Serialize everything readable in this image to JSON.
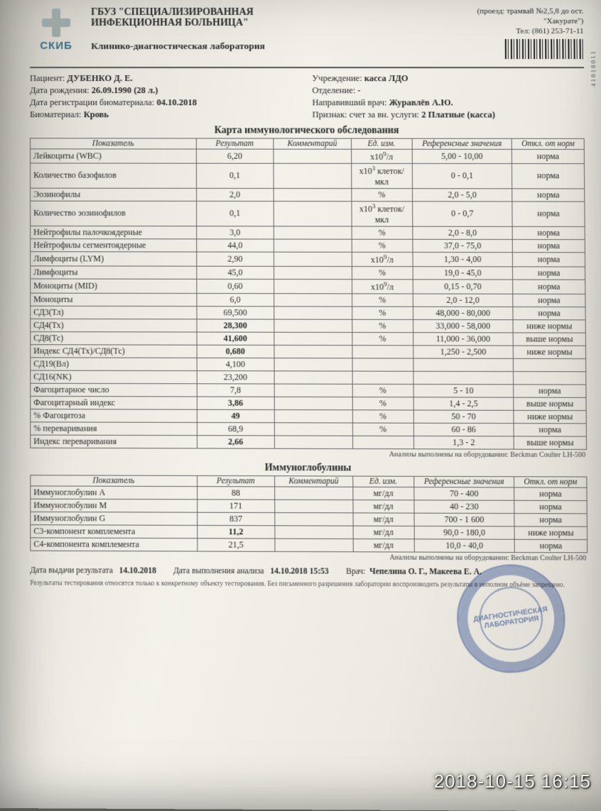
{
  "org": {
    "line1": "ГБУЗ \"СПЕЦИАЛИЗИРОВАННАЯ",
    "line2": "ИНФЕКЦИОННАЯ БОЛЬНИЦА\"",
    "lab": "Клинико-диагностическая лаборатория",
    "logo_label": "СКИБ"
  },
  "top_right": {
    "line1": "(проезд: трамвай №2,5,8 до ост.",
    "line2": "\"Хакурате\")",
    "phone": "Тел: (861) 253-71-11",
    "barcode_num": "41018011"
  },
  "patient": {
    "label": "Пациент:",
    "name": "ДУБЕНКО Д. Е.",
    "dob_label": "Дата рождения:",
    "dob": "26.09.1990 (28 л.)",
    "reg_label": "Дата регистрации биоматериала:",
    "reg_date": "04.10.2018",
    "bio_label": "Биоматериал:",
    "bio": "Кровь"
  },
  "institution": {
    "org_label": "Учреждение:",
    "org": "касса ЛДО",
    "dept_label": "Отделение:",
    "dept": "-",
    "ref_label": "Направивший врач:",
    "ref": "Журавлёв А.Ю.",
    "sign_label": "Признак:",
    "sign": "счет за вн. услуги:",
    "sign2": "2 Платные (касса)"
  },
  "columns": {
    "name": "Показатель",
    "result": "Результат",
    "comment": "Комментарий",
    "unit": "Ед. изм.",
    "ref": "Референсные значения",
    "dev": "Откл. от норм"
  },
  "section1": {
    "title": "Карта иммунологического обследования",
    "rows": [
      {
        "name": "Лейкоциты (WBC)",
        "res": "6,20",
        "unit": "x10⁹/л",
        "ref": "5,00 - 10,00",
        "dev": "норма",
        "bold": false
      },
      {
        "name": "Количество базофилов",
        "res": "0,1",
        "unit": "x10³ клеток/мкл",
        "ref": "0 - 0,1",
        "dev": "норма",
        "bold": false
      },
      {
        "name": "Эозинофилы",
        "res": "2,0",
        "unit": "%",
        "ref": "2,0 - 5,0",
        "dev": "норма",
        "bold": false
      },
      {
        "name": "Количество эозинофилов",
        "res": "0,1",
        "unit": "x10³ клеток/мкл",
        "ref": "0 - 0,7",
        "dev": "норма",
        "bold": false
      },
      {
        "name": "Нейтрофилы палочкоядерные",
        "res": "3,0",
        "unit": "%",
        "ref": "2,0 - 8,0",
        "dev": "норма",
        "bold": false
      },
      {
        "name": "Нейтрофилы сегментоядерные",
        "res": "44,0",
        "unit": "%",
        "ref": "37,0 - 75,0",
        "dev": "норма",
        "bold": false
      },
      {
        "name": "Лимфоциты (LYM)",
        "res": "2,90",
        "unit": "x10⁹/л",
        "ref": "1,30 - 4,00",
        "dev": "норма",
        "bold": false
      },
      {
        "name": "Лимфоциты",
        "res": "45,0",
        "unit": "%",
        "ref": "19,0 - 45,0",
        "dev": "норма",
        "bold": false
      },
      {
        "name": "Моноциты (MID)",
        "res": "0,60",
        "unit": "x10⁹/л",
        "ref": "0,15 - 0,70",
        "dev": "норма",
        "bold": false
      },
      {
        "name": "Моноциты",
        "res": "6,0",
        "unit": "%",
        "ref": "2,0 - 12,0",
        "dev": "норма",
        "bold": false
      },
      {
        "name": "СД3(Тл)",
        "res": "69,500",
        "unit": "%",
        "ref": "48,000 - 80,000",
        "dev": "норма",
        "bold": false
      },
      {
        "name": "СД4(Тх)",
        "res": "28,300",
        "unit": "%",
        "ref": "33,000 - 58,000",
        "dev": "ниже нормы",
        "bold": true
      },
      {
        "name": "СД8(Тс)",
        "res": "41,600",
        "unit": "%",
        "ref": "11,000 - 36,000",
        "dev": "выше нормы",
        "bold": true
      },
      {
        "name": "Индекс СД4(Тх)/СД8(Тс)",
        "res": "0,680",
        "unit": "",
        "ref": "1,250 - 2,500",
        "dev": "ниже нормы",
        "bold": true
      },
      {
        "name": "СД19(Вл)",
        "res": "4,100",
        "unit": "",
        "ref": "",
        "dev": "",
        "bold": false
      },
      {
        "name": "СД16(NK)",
        "res": "23,200",
        "unit": "",
        "ref": "",
        "dev": "",
        "bold": false
      },
      {
        "name": "Фагоцитарное число",
        "res": "7,8",
        "unit": "%",
        "ref": "5 - 10",
        "dev": "норма",
        "bold": false
      },
      {
        "name": "Фагоцитарный индекс",
        "res": "3,86",
        "unit": "%",
        "ref": "1,4 - 2,5",
        "dev": "выше нормы",
        "bold": true
      },
      {
        "name": "% Фагоцитоза",
        "res": "49",
        "unit": "%",
        "ref": "50 - 70",
        "dev": "ниже нормы",
        "bold": true
      },
      {
        "name": "% переваривания",
        "res": "68,9",
        "unit": "%",
        "ref": "60 - 86",
        "dev": "норма",
        "bold": false
      },
      {
        "name": "Индекс переваривания",
        "res": "2,66",
        "unit": "",
        "ref": "1,3 - 2",
        "dev": "выше нормы",
        "bold": true
      }
    ],
    "equip": "Анализы выполнены на оборудовании: Beckman Coulter LH-500"
  },
  "section2": {
    "title": "Иммуноглобулины",
    "rows": [
      {
        "name": "Иммуноглобулин А",
        "res": "88",
        "unit": "мг/дл",
        "ref": "70 - 400",
        "dev": "норма",
        "bold": false
      },
      {
        "name": "Иммуноглобулин М",
        "res": "171",
        "unit": "мг/дл",
        "ref": "40 - 230",
        "dev": "норма",
        "bold": false
      },
      {
        "name": "Иммуноглобулин G",
        "res": "837",
        "unit": "мг/дл",
        "ref": "700 - 1 600",
        "dev": "норма",
        "bold": false
      },
      {
        "name": "С3-компонент комплемента",
        "res": "11,2",
        "unit": "мг/дл",
        "ref": "90,0 - 180,0",
        "dev": "ниже нормы",
        "bold": true
      },
      {
        "name": "С4-компонента комплемента",
        "res": "21,5",
        "unit": "мг/дл",
        "ref": "10,0 - 40,0",
        "dev": "норма",
        "bold": false
      }
    ],
    "equip": "Анализы выполнены на оборудовании: Beckman Coulter LH-500"
  },
  "footer": {
    "issue_label": "Дата выдачи результата",
    "issue_date": "14.10.2018",
    "done_label": "Дата выполнения анализа",
    "done_date": "14.10.2018 15:53",
    "doctor_label": "Врач:",
    "doctor": "Чепелина О. Г., Макеева Е. А.",
    "disclaimer": "Результаты тестирования относятся только к конкретному объекту тестирования. Без письменного разрешения лаборатории воспроизводить результаты в неполном объёме запрещено."
  },
  "stamp_text": "ДИАГНОСТИЧЕСКАЯ ЛАБОРАТОРИЯ",
  "photo_timestamp": "2018-10-15 16:15"
}
